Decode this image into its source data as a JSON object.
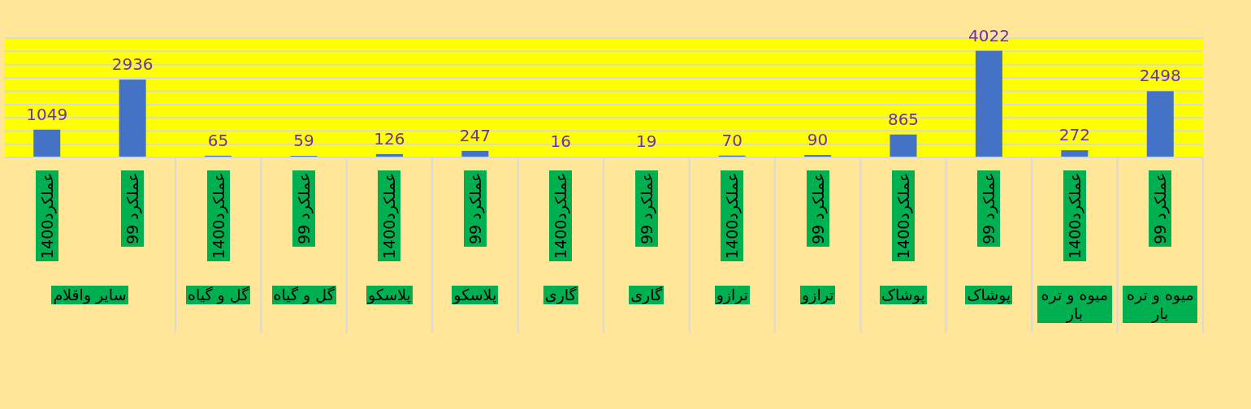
{
  "chart_data": {
    "type": "bar",
    "categories": [
      "عملکرد1400",
      "عملکرد 99",
      "عملکرد1400",
      "عملکرد 99",
      "عملکرد1400",
      "عملکرد 99",
      "عملکرد1400",
      "عملکرد 99",
      "عملکرد1400",
      "عملکرد 99",
      "عملکرد1400",
      "عملکرد 99",
      "عملکرد1400",
      "عملکرد 99"
    ],
    "values": [
      1049,
      2936,
      65,
      59,
      126,
      247,
      16,
      19,
      70,
      90,
      865,
      4022,
      272,
      2498
    ],
    "color": "#4472c4",
    "ylim": [
      0,
      4500
    ],
    "yticks": [
      {
        "value": 0,
        "label": null
      },
      {
        "value": 500,
        "label": null
      },
      {
        "value": 1000,
        "label": null
      },
      {
        "value": 1500,
        "label": null
      },
      {
        "value": 2000,
        "label": null
      },
      {
        "value": 2500,
        "label": null
      },
      {
        "value": 3000,
        "label": null
      },
      {
        "value": 3500,
        "label": null
      },
      {
        "value": 4000,
        "label": null
      },
      {
        "value": 4500,
        "label": null
      }
    ],
    "grid": "y",
    "data_labels": true,
    "tick_labels": "x",
    "annotations": [
      "سایر واقلام",
      "گل و گیاه",
      "گل و گیاه",
      "پلاسکو",
      "پلاسکو",
      "گاری",
      "گاری",
      "ترازو",
      "ترازو",
      "پوشاک",
      "پوشاک",
      "میوه و تره بار",
      "میوه و تره بار"
    ]
  }
}
